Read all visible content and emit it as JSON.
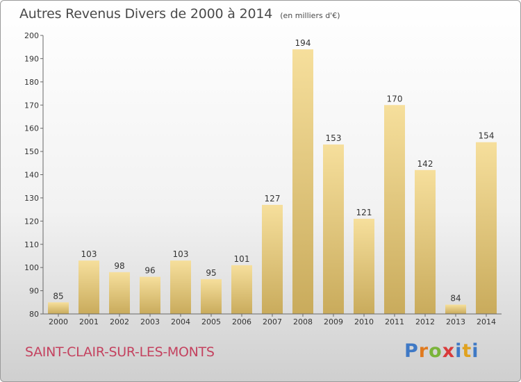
{
  "header": {
    "title": "Autres Revenus Divers de 2000 à 2014",
    "subtitle": "(en milliers d'€)"
  },
  "footer": {
    "town": "SAINT-CLAIR-SUR-LES-MONTS",
    "logo_text": "Proxiti"
  },
  "colors": {
    "bar_light": "#f6df9c",
    "bar_dark": "#c9ab5c",
    "town_text": "#c4425f",
    "axis": "#666666"
  },
  "chart_data": {
    "type": "bar",
    "title": "Autres Revenus Divers de 2000 à 2014",
    "subtitle": "(en milliers d'€)",
    "categories": [
      "2000",
      "2001",
      "2002",
      "2003",
      "2004",
      "2005",
      "2006",
      "2007",
      "2008",
      "2009",
      "2010",
      "2011",
      "2012",
      "2013",
      "2014"
    ],
    "values": [
      85,
      103,
      98,
      96,
      103,
      95,
      101,
      127,
      194,
      153,
      121,
      170,
      142,
      84,
      154
    ],
    "ylim": [
      80,
      200
    ],
    "yticks": [
      80,
      90,
      100,
      110,
      120,
      130,
      140,
      150,
      160,
      170,
      180,
      190,
      200
    ],
    "grid": false,
    "data_labels": true
  }
}
